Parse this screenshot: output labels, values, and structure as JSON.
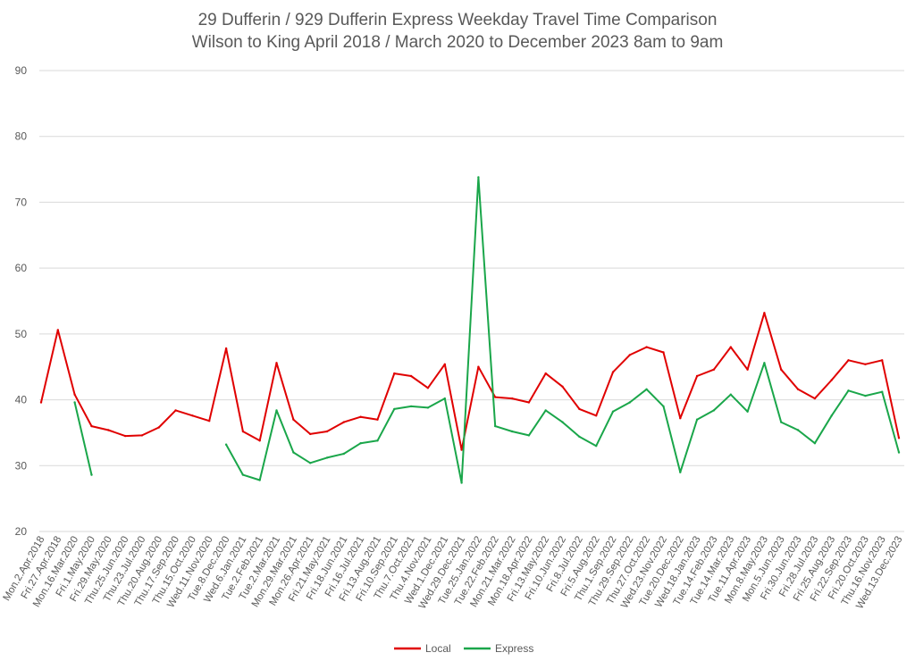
{
  "chart_data": {
    "type": "line",
    "title": [
      "29 Dufferin / 929 Dufferin Express Weekday Travel Time Comparison",
      "Wilson to King April 2018 / March 2020 to December 2023 8am to 9am"
    ],
    "xlabel": "",
    "ylabel": "",
    "ylim": [
      20,
      90
    ],
    "yticks": [
      20,
      30,
      40,
      50,
      60,
      70,
      80,
      90
    ],
    "grid": true,
    "legend_position": "bottom",
    "categories": [
      "Mon.2.Apr.2018",
      "Fri.27.Apr.2018",
      "Mon.16.Mar.2020",
      "Fri.1.May.2020",
      "Fri.29.May.2020",
      "Thu.25.Jun.2020",
      "Thu.23.Jul.2020",
      "Thu.20.Aug.2020",
      "Thu.17.Sep.2020",
      "Thu.15.Oct.2020",
      "Wed.11.Nov.2020",
      "Tue.8.Dec.2020",
      "Wed.6.Jan.2021",
      "Tue.2.Feb.2021",
      "Tue.2.Mar.2021",
      "Mon.29.Mar.2021",
      "Mon.26.Apr.2021",
      "Fri.21.May.2021",
      "Fri.18.Jun.2021",
      "Fri.16.Jul.2021",
      "Fri.13.Aug.2021",
      "Fri.10.Sep.2021",
      "Thu.7.Oct.2021",
      "Thu.4.Nov.2021",
      "Wed.1.Dec.2021",
      "Wed.29.Dec.2021",
      "Tue.25.Jan.2022",
      "Tue.22.Feb.2022",
      "Mon.21.Mar.2022",
      "Mon.18.Apr.2022",
      "Fri.13.May.2022",
      "Fri.10.Jun.2022",
      "Fri.8.Jul.2022",
      "Fri.5.Aug.2022",
      "Thu.1.Sep.2022",
      "Thu.29.Sep.2022",
      "Thu.27.Oct.2022",
      "Wed.23.Nov.2022",
      "Tue.20.Dec.2022",
      "Wed.18.Jan.2023",
      "Tue.14.Feb.2023",
      "Tue.14.Mar.2023",
      "Tue.11.Apr.2023",
      "Mon.8.May.2023",
      "Mon.5.Jun.2023",
      "Fri.30.Jun.2023",
      "Fri.28.Jul.2023",
      "Fri.25.Aug.2023",
      "Fri.22.Sep.2023",
      "Fri.20.Oct.2023",
      "Thu.16.Nov.2023",
      "Wed.13.Dec.2023"
    ],
    "series": [
      {
        "name": "Local",
        "color": "#e00000",
        "values": [
          39.6,
          50.6,
          40.8,
          36.0,
          35.4,
          34.5,
          34.6,
          35.8,
          38.4,
          37.6,
          36.8,
          47.8,
          35.2,
          33.8,
          45.6,
          37.0,
          34.8,
          35.2,
          36.6,
          37.4,
          37.0,
          44.0,
          43.6,
          41.8,
          45.4,
          32.4,
          45.0,
          40.4,
          40.2,
          39.6,
          44.0,
          42.0,
          38.6,
          37.6,
          44.2,
          46.8,
          48.0,
          47.2,
          37.2,
          43.6,
          44.6,
          48.0,
          44.6,
          53.2,
          44.6,
          41.6,
          40.2,
          43.0,
          46.0,
          45.4,
          46.0,
          34.2
        ]
      },
      {
        "name": "Express",
        "color": "#1aa64a",
        "values": [
          null,
          null,
          39.6,
          28.6,
          null,
          null,
          null,
          null,
          null,
          null,
          null,
          33.2,
          28.6,
          27.8,
          38.4,
          32.0,
          30.4,
          31.2,
          31.8,
          33.4,
          33.8,
          38.6,
          39.0,
          38.8,
          40.2,
          27.4,
          73.8,
          36.0,
          35.2,
          34.6,
          38.4,
          36.6,
          34.4,
          33.0,
          38.2,
          39.6,
          41.6,
          39.0,
          29.0,
          37.0,
          38.4,
          40.8,
          38.2,
          45.6,
          36.6,
          35.4,
          33.4,
          37.6,
          41.4,
          40.6,
          41.2,
          32.0
        ]
      }
    ]
  }
}
